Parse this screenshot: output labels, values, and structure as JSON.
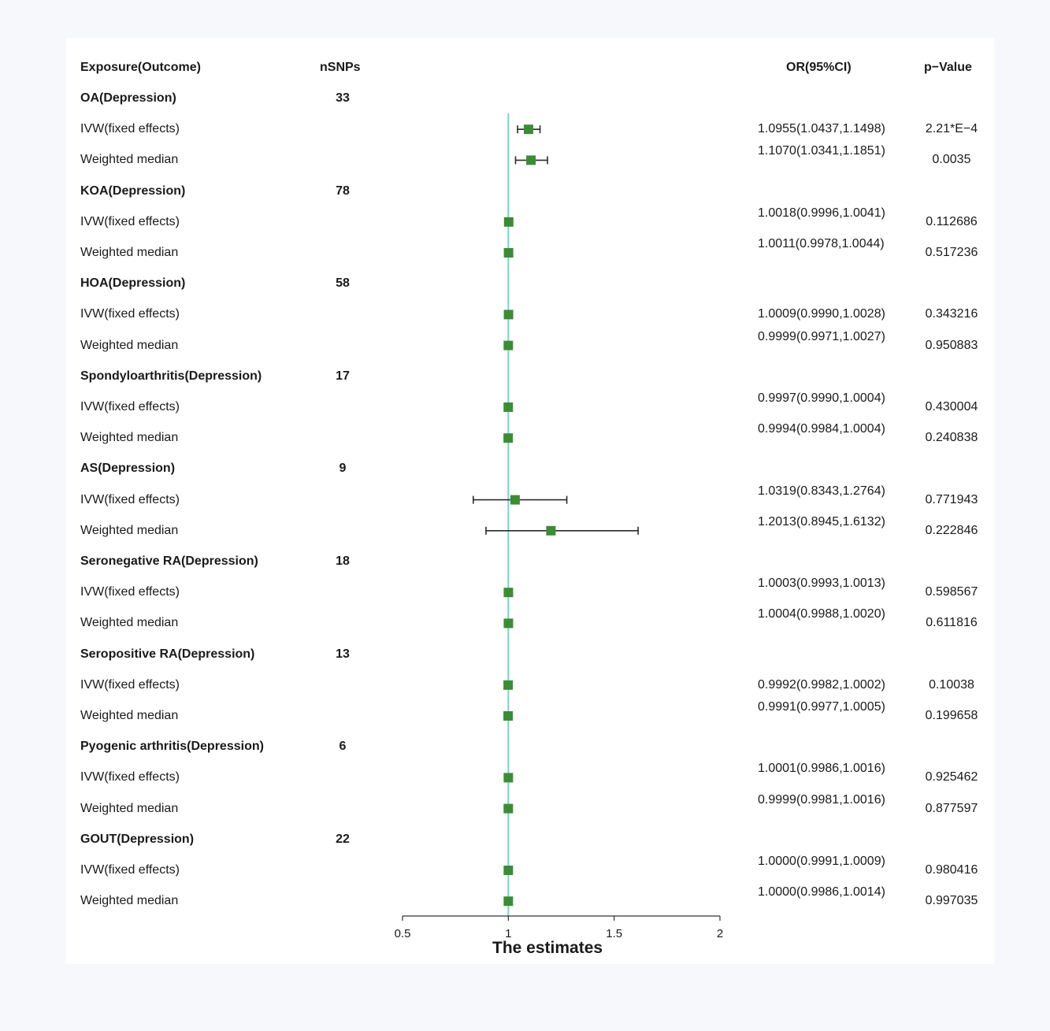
{
  "headers": {
    "exposure": "Exposure(Outcome)",
    "nsnps": "nSNPs",
    "or": "OR(95%CI)",
    "pvalue": "p−Value"
  },
  "colors": {
    "marker": "#3d8b37",
    "reference_line": "#7ecfcf",
    "whisker": "#2b2b2b",
    "axis": "#333333"
  },
  "chart_data": {
    "type": "forest",
    "xlabel": "The estimates",
    "xlim": [
      0.5,
      2
    ],
    "xticks": [
      0.5,
      1,
      1.5,
      2
    ],
    "xtick_labels": [
      "0.5",
      "1",
      "1.5",
      "2"
    ],
    "reference_value": 1,
    "groups": [
      {
        "label": "OA(Depression)",
        "nsnps": "33",
        "rows": [
          {
            "method": "IVW(fixed effects)",
            "or": 1.0955,
            "lo": 1.0437,
            "hi": 1.1498,
            "or_text": "1.0955(1.0437,1.1498)",
            "p": "2.21*E−4"
          },
          {
            "method": "Weighted median",
            "or": 1.107,
            "lo": 1.0341,
            "hi": 1.1851,
            "or_text": "1.1070(1.0341,1.1851)",
            "p": "0.0035"
          }
        ]
      },
      {
        "label": "KOA(Depression)",
        "nsnps": "78",
        "rows": [
          {
            "method": "IVW(fixed effects)",
            "or": 1.0018,
            "lo": 0.9996,
            "hi": 1.0041,
            "or_text": "1.0018(0.9996,1.0041)",
            "p": "0.112686"
          },
          {
            "method": "Weighted median",
            "or": 1.0011,
            "lo": 0.9978,
            "hi": 1.0044,
            "or_text": "1.0011(0.9978,1.0044)",
            "p": "0.517236"
          }
        ]
      },
      {
        "label": "HOA(Depression)",
        "nsnps": "58",
        "rows": [
          {
            "method": "IVW(fixed effects)",
            "or": 1.0009,
            "lo": 0.999,
            "hi": 1.0028,
            "or_text": "1.0009(0.9990,1.0028)",
            "p": "0.343216"
          },
          {
            "method": "Weighted median",
            "or": 0.9999,
            "lo": 0.9971,
            "hi": 1.0027,
            "or_text": "0.9999(0.9971,1.0027)",
            "p": "0.950883"
          }
        ]
      },
      {
        "label": "Spondyloarthritis(Depression)",
        "nsnps": "17",
        "rows": [
          {
            "method": "IVW(fixed effects)",
            "or": 0.9997,
            "lo": 0.999,
            "hi": 1.0004,
            "or_text": "0.9997(0.9990,1.0004)",
            "p": "0.430004"
          },
          {
            "method": "Weighted median",
            "or": 0.9994,
            "lo": 0.9984,
            "hi": 1.0004,
            "or_text": "0.9994(0.9984,1.0004)",
            "p": "0.240838"
          }
        ]
      },
      {
        "label": "AS(Depression)",
        "nsnps": "9",
        "rows": [
          {
            "method": "IVW(fixed effects)",
            "or": 1.0319,
            "lo": 0.8343,
            "hi": 1.2764,
            "or_text": "1.0319(0.8343,1.2764)",
            "p": "0.771943"
          },
          {
            "method": "Weighted median",
            "or": 1.2013,
            "lo": 0.8945,
            "hi": 1.6132,
            "or_text": "1.2013(0.8945,1.6132)",
            "p": "0.222846"
          }
        ]
      },
      {
        "label": "Seronegative RA(Depression)",
        "nsnps": "18",
        "rows": [
          {
            "method": "IVW(fixed effects)",
            "or": 1.0003,
            "lo": 0.9993,
            "hi": 1.0013,
            "or_text": "1.0003(0.9993,1.0013)",
            "p": "0.598567"
          },
          {
            "method": "Weighted median",
            "or": 1.0004,
            "lo": 0.9988,
            "hi": 1.002,
            "or_text": "1.0004(0.9988,1.0020)",
            "p": "0.611816"
          }
        ]
      },
      {
        "label": "Seropositive RA(Depression)",
        "nsnps": "13",
        "rows": [
          {
            "method": "IVW(fixed effects)",
            "or": 0.9992,
            "lo": 0.9982,
            "hi": 1.0002,
            "or_text": "0.9992(0.9982,1.0002)",
            "p": "0.10038"
          },
          {
            "method": "Weighted median",
            "or": 0.9991,
            "lo": 0.9977,
            "hi": 1.0005,
            "or_text": "0.9991(0.9977,1.0005)",
            "p": "0.199658"
          }
        ]
      },
      {
        "label": "Pyogenic arthritis(Depression)",
        "nsnps": "6",
        "rows": [
          {
            "method": "IVW(fixed effects)",
            "or": 1.0001,
            "lo": 0.9986,
            "hi": 1.0016,
            "or_text": "1.0001(0.9986,1.0016)",
            "p": "0.925462"
          },
          {
            "method": "Weighted median",
            "or": 0.9999,
            "lo": 0.9981,
            "hi": 1.0016,
            "or_text": "0.9999(0.9981,1.0016)",
            "p": "0.877597"
          }
        ]
      },
      {
        "label": "GOUT(Depression)",
        "nsnps": "22",
        "rows": [
          {
            "method": "IVW(fixed effects)",
            "or": 1.0,
            "lo": 0.9991,
            "hi": 1.0009,
            "or_text": "1.0000(0.9991,1.0009)",
            "p": "0.980416"
          },
          {
            "method": "Weighted median",
            "or": 1.0,
            "lo": 0.9986,
            "hi": 1.0014,
            "or_text": "1.0000(0.9986,1.0014)",
            "p": "0.997035"
          }
        ]
      }
    ]
  }
}
